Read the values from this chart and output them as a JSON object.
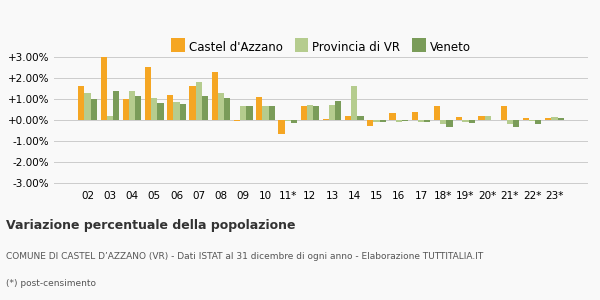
{
  "categories": [
    "02",
    "03",
    "04",
    "05",
    "06",
    "07",
    "08",
    "09",
    "10",
    "11*",
    "12",
    "13",
    "14",
    "15",
    "16",
    "17",
    "18*",
    "19*",
    "20*",
    "21*",
    "22*",
    "23*"
  ],
  "castel": [
    1.6,
    3.0,
    1.0,
    2.55,
    1.2,
    1.6,
    2.3,
    -0.05,
    1.1,
    -0.65,
    0.65,
    0.05,
    0.2,
    -0.3,
    0.35,
    0.4,
    0.65,
    0.15,
    0.2,
    0.65,
    0.1,
    0.1
  ],
  "provincia": [
    1.3,
    0.2,
    1.4,
    1.05,
    0.85,
    1.8,
    1.3,
    0.65,
    0.65,
    -0.05,
    0.7,
    0.7,
    1.6,
    -0.1,
    -0.1,
    -0.1,
    -0.2,
    -0.1,
    0.2,
    -0.2,
    -0.05,
    0.15
  ],
  "veneto": [
    1.0,
    1.4,
    1.15,
    0.8,
    0.75,
    1.15,
    1.05,
    0.65,
    0.65,
    -0.15,
    0.65,
    0.9,
    0.2,
    -0.1,
    -0.05,
    -0.1,
    -0.35,
    -0.15,
    0.0,
    -0.35,
    -0.2,
    0.1
  ],
  "castel_color": "#f5a623",
  "provincia_color": "#b5cc8e",
  "veneto_color": "#7a9c59",
  "title": "Variazione percentuale della popolazione",
  "subtitle": "COMUNE DI CASTEL D’AZZANO (VR) - Dati ISTAT al 31 dicembre di ogni anno - Elaborazione TUTTITALIA.IT",
  "footnote": "(*) post-censimento",
  "legend_labels": [
    "Castel d'Azzano",
    "Provincia di VR",
    "Veneto"
  ],
  "ylim": [
    -3.0,
    3.0
  ],
  "yticks": [
    -3.0,
    -2.0,
    -1.0,
    0.0,
    1.0,
    2.0,
    3.0
  ],
  "background_color": "#f9f9f9",
  "grid_color": "#cccccc"
}
